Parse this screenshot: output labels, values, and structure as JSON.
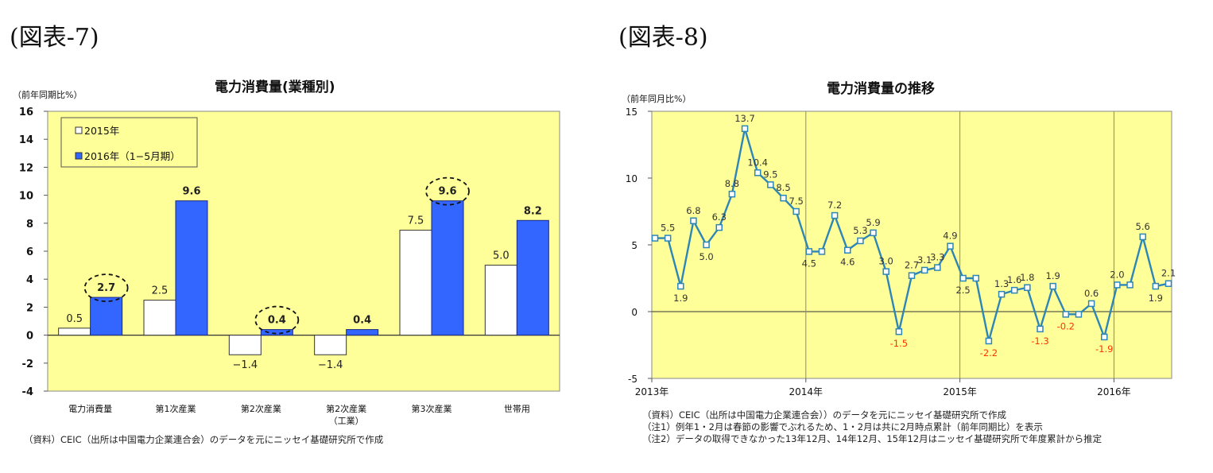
{
  "figures": [
    {
      "label": "(図表-7)",
      "notes": [
        "（資料）CEIC（出所は中国電力企業連合会）のデータを元にニッセイ基礎研究所で作成"
      ]
    },
    {
      "label": "(図表-8)",
      "notes": [
        "（資料）CEIC（出所は中国電力企業連合会））のデータを元にニッセイ基礎研究所で作成",
        "（注1）例年1・2月は春節の影響でぶれるため、1・2月は共に2月時点累計（前年同期比）を表示",
        "（注2）データの取得できなかった13年12月、14年12月、15年12月はニッセイ基礎研究所で年度累計から推定"
      ]
    }
  ],
  "chart_data": [
    {
      "type": "bar",
      "title": "電力消費量(業種別)",
      "ylabel": "（前年同期比%）",
      "ylim": [
        -4,
        16
      ],
      "yticks": [
        -4,
        -2,
        0,
        2,
        4,
        6,
        8,
        10,
        12,
        14,
        16
      ],
      "categories": [
        "電力消費量",
        "第1次産業",
        "第2次産業",
        "第2次産業",
        "第3次産業",
        "世帯用"
      ],
      "category_sublabels": [
        "",
        "",
        "",
        "（工業）",
        "",
        ""
      ],
      "series": [
        {
          "name": "2015年",
          "values": [
            0.5,
            2.5,
            -1.4,
            -1.4,
            7.5,
            5.0
          ],
          "labels": [
            "0.5",
            "2.5",
            "−1.4",
            "−1.4",
            "7.5",
            "5.0"
          ],
          "color": "#ffffff"
        },
        {
          "name": "2016年（1−5月期）",
          "values": [
            2.7,
            9.6,
            0.4,
            0.4,
            9.6,
            8.2
          ],
          "labels": [
            "2.7",
            "9.6",
            "0.4",
            "0.4",
            "9.6",
            "8.2"
          ],
          "color": "#3366ff"
        }
      ],
      "highlighted": [
        [
          1,
          0
        ],
        [
          1,
          2
        ],
        [
          1,
          4
        ]
      ],
      "background": "#ffff99",
      "grid": false,
      "legend": "top-left"
    },
    {
      "type": "line",
      "title": "電力消費量の推移",
      "ylabel": "（前年同月比%）",
      "ylim": [
        -5,
        15
      ],
      "yticks": [
        -5,
        0,
        5,
        10,
        15
      ],
      "xticks": [
        "2013年",
        "2014年",
        "2015年",
        "2016年"
      ],
      "x_start_year": 2013,
      "series": [
        {
          "values": [
            5.5,
            5.5,
            1.9,
            6.8,
            5.0,
            6.3,
            8.8,
            13.7,
            10.4,
            9.5,
            8.5,
            7.5,
            4.5,
            4.5,
            7.2,
            4.6,
            5.3,
            5.9,
            3.0,
            -1.5,
            2.7,
            3.1,
            3.3,
            4.9,
            2.5,
            2.5,
            -2.2,
            1.3,
            1.6,
            1.8,
            -1.3,
            1.9,
            -0.2,
            -0.2,
            0.6,
            -1.9,
            2.0,
            2.0,
            5.6,
            1.9,
            2.1
          ],
          "labels": [
            "",
            "5.5",
            "1.9",
            "6.8",
            "5.0",
            "6.3",
            "8.8",
            "13.7",
            "10.4",
            "9.5",
            "8.5",
            "7.5",
            "4.5",
            "",
            "7.2",
            "4.6",
            "5.3",
            "5.9",
            "3.0",
            "-1.5",
            "2.7",
            "3.1",
            "3.3",
            "4.9",
            "2.5",
            "",
            "-2.2",
            "1.3",
            "1.6",
            "1.8",
            "-1.3",
            "1.9",
            "-0.2",
            "",
            "0.6",
            "-1.9",
            "2.0",
            "",
            "5.6",
            "1.9",
            "2.1"
          ],
          "color": "#2e86b6"
        }
      ],
      "negative_label_color": "#ff3300",
      "background": "#ffff99",
      "grid": "vertical-year"
    }
  ]
}
